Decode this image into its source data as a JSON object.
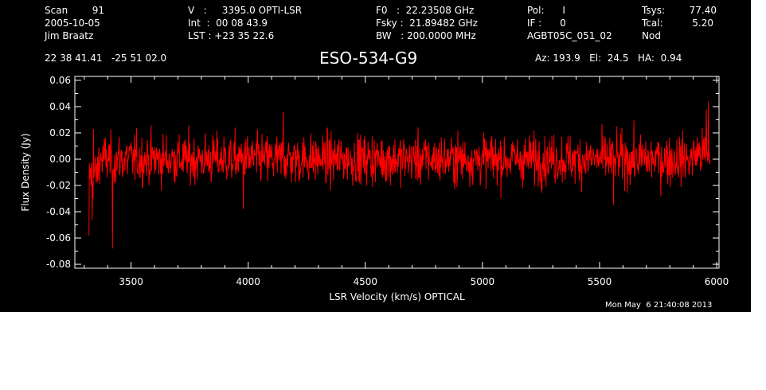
{
  "header": {
    "col1": [
      "Scan        91",
      "2005-10-05",
      "Jim Braatz"
    ],
    "col2": [
      "V   :     3395.0 OPTI-LSR",
      "Int  :  00 08 43.9",
      "LST : +23 35 22.6"
    ],
    "col3": [
      "F0   :  22.23508 GHz",
      "Fsky :  21.89482 GHz",
      "BW   : 200.0000 MHz"
    ],
    "col4": [
      "Pol:      I",
      "IF :      0",
      "AGBT05C_051_02"
    ],
    "col5_labels": [
      "Tsys:",
      "Tcal:",
      "Nod"
    ],
    "col5_values": [
      "77.40",
      "5.20",
      ""
    ],
    "coords": "22 38 41.41   -25 51 02.0",
    "source": "ESO-534-G9",
    "pointing": "Az: 193.9   El:  24.5   HA:  0.94",
    "timestamp": "Mon May  6 21:40:08 2013"
  },
  "chart_data": {
    "type": "line",
    "title": "ESO-534-G9",
    "xlabel": "LSR Velocity (km/s) OPTICAL",
    "ylabel": "Flux Density (Jy)",
    "xlim": [
      3260,
      6010
    ],
    "ylim": [
      -0.083,
      0.063
    ],
    "x_ticks": [
      3500,
      4000,
      4500,
      5000,
      5500,
      6000
    ],
    "y_ticks": [
      -0.08,
      -0.06,
      -0.04,
      -0.02,
      0.0,
      0.02,
      0.04,
      0.06
    ],
    "y_tick_labels": [
      "-0.08",
      "-0.06",
      "-0.04",
      "-0.02",
      "0.00",
      "0.02",
      "0.04",
      "0.06"
    ],
    "line_color": "#ff0000",
    "series_x_range": [
      3320,
      5970
    ],
    "series_points": 1500,
    "noise_rms": 0.0125,
    "features": [
      {
        "x": 3320,
        "y": -0.058
      },
      {
        "x": 3335,
        "y": -0.046
      },
      {
        "x": 3420,
        "y": -0.068
      },
      {
        "x": 3340,
        "y": 0.023
      },
      {
        "x": 5965,
        "y": 0.044
      },
      {
        "x": 5955,
        "y": 0.038
      },
      {
        "x": 3980,
        "y": -0.038
      },
      {
        "x": 4150,
        "y": 0.036
      },
      {
        "x": 5560,
        "y": -0.035
      }
    ]
  }
}
